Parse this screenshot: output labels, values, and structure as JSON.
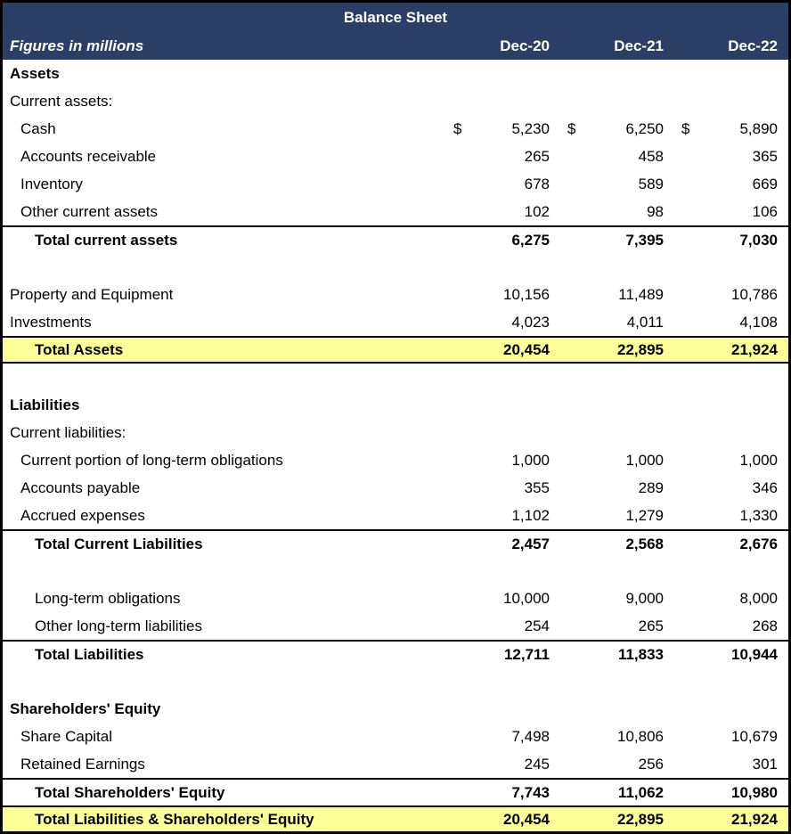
{
  "title": "Balance Sheet",
  "subtitle": "Figures in millions",
  "columns": [
    "Dec-20",
    "Dec-21",
    "Dec-22"
  ],
  "colors": {
    "header_bg": "#2a3e66",
    "header_text": "#ffffff",
    "highlight_bg": "#ffff99",
    "border": "#000000"
  },
  "rows": [
    {
      "label": "Assets",
      "style": "section",
      "indent": 0,
      "dollar": false,
      "values": null
    },
    {
      "label": "Current assets:",
      "style": "normal",
      "indent": 0,
      "dollar": false,
      "values": null
    },
    {
      "label": "Cash",
      "style": "normal",
      "indent": 1,
      "dollar": true,
      "values": [
        "5,230",
        "6,250",
        "5,890"
      ]
    },
    {
      "label": "Accounts receivable",
      "style": "normal",
      "indent": 1,
      "dollar": false,
      "values": [
        "265",
        "458",
        "365"
      ]
    },
    {
      "label": "Inventory",
      "style": "normal",
      "indent": 1,
      "dollar": false,
      "values": [
        "678",
        "589",
        "669"
      ]
    },
    {
      "label": "Other current assets",
      "style": "normal",
      "indent": 1,
      "dollar": false,
      "values": [
        "102",
        "98",
        "106"
      ]
    },
    {
      "label": "Total current assets",
      "style": "total",
      "indent": 2,
      "dollar": false,
      "values": [
        "6,275",
        "7,395",
        "7,030"
      ]
    },
    {
      "label": "",
      "style": "blank",
      "indent": 0,
      "dollar": false,
      "values": null
    },
    {
      "label": "Property and Equipment",
      "style": "normal",
      "indent": 0,
      "dollar": false,
      "values": [
        "10,156",
        "11,489",
        "10,786"
      ]
    },
    {
      "label": "Investments",
      "style": "normal",
      "indent": 0,
      "dollar": false,
      "values": [
        "4,023",
        "4,011",
        "4,108"
      ]
    },
    {
      "label": "Total Assets",
      "style": "grand",
      "indent": 2,
      "dollar": false,
      "values": [
        "20,454",
        "22,895",
        "21,924"
      ]
    },
    {
      "label": "",
      "style": "blank",
      "indent": 0,
      "dollar": false,
      "values": null
    },
    {
      "label": "Liabilities",
      "style": "section",
      "indent": 0,
      "dollar": false,
      "values": null
    },
    {
      "label": "Current liabilities:",
      "style": "normal",
      "indent": 0,
      "dollar": false,
      "values": null
    },
    {
      "label": "Current portion of long-term obligations",
      "style": "normal",
      "indent": 1,
      "dollar": false,
      "values": [
        "1,000",
        "1,000",
        "1,000"
      ]
    },
    {
      "label": "Accounts payable",
      "style": "normal",
      "indent": 1,
      "dollar": false,
      "values": [
        "355",
        "289",
        "346"
      ]
    },
    {
      "label": "Accrued expenses",
      "style": "normal",
      "indent": 1,
      "dollar": false,
      "values": [
        "1,102",
        "1,279",
        "1,330"
      ]
    },
    {
      "label": "Total Current Liabilities",
      "style": "total",
      "indent": 2,
      "dollar": false,
      "values": [
        "2,457",
        "2,568",
        "2,676"
      ]
    },
    {
      "label": "",
      "style": "blank",
      "indent": 0,
      "dollar": false,
      "values": null
    },
    {
      "label": "Long-term obligations",
      "style": "normal",
      "indent": 2,
      "dollar": false,
      "values": [
        "10,000",
        "9,000",
        "8,000"
      ]
    },
    {
      "label": "Other long-term liabilities",
      "style": "normal",
      "indent": 2,
      "dollar": false,
      "values": [
        "254",
        "265",
        "268"
      ]
    },
    {
      "label": "Total Liabilities",
      "style": "total",
      "indent": 2,
      "dollar": false,
      "values": [
        "12,711",
        "11,833",
        "10,944"
      ]
    },
    {
      "label": "",
      "style": "blank",
      "indent": 0,
      "dollar": false,
      "values": null
    },
    {
      "label": "Shareholders' Equity",
      "style": "section",
      "indent": 0,
      "dollar": false,
      "values": null
    },
    {
      "label": "Share Capital",
      "style": "normal",
      "indent": 1,
      "dollar": false,
      "values": [
        "7,498",
        "10,806",
        "10,679"
      ]
    },
    {
      "label": "Retained Earnings",
      "style": "normal",
      "indent": 1,
      "dollar": false,
      "values": [
        "245",
        "256",
        "301"
      ]
    },
    {
      "label": "Total Shareholders' Equity",
      "style": "total",
      "indent": 2,
      "dollar": false,
      "values": [
        "7,743",
        "11,062",
        "10,980"
      ]
    },
    {
      "label": "Total Liabilities & Shareholders' Equity",
      "style": "grand",
      "indent": 2,
      "dollar": false,
      "values": [
        "20,454",
        "22,895",
        "21,924"
      ]
    }
  ]
}
